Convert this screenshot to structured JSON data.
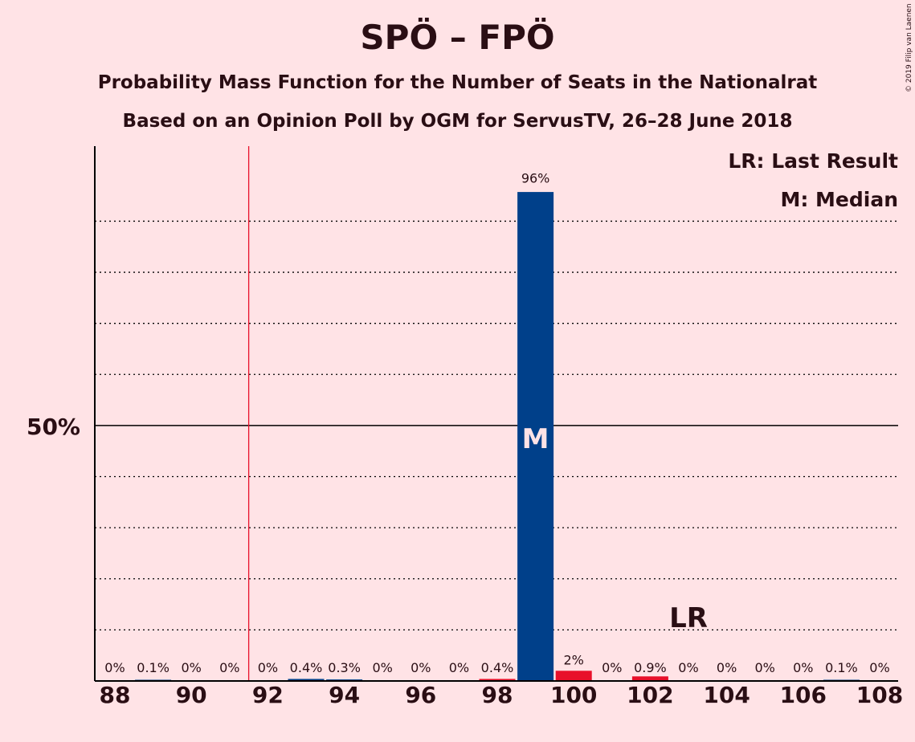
{
  "header": {
    "title": "SPÖ – FPÖ",
    "subtitle1": "Probability Mass Function for the Number of Seats in the Nationalrat",
    "subtitle2": "Based on an Opinion Poll by OGM for ServusTV, 26–28 June 2018",
    "copyright": "© 2019 Filip van Laenen"
  },
  "chart_data": {
    "type": "bar",
    "title": "SPÖ – FPÖ",
    "x": [
      88,
      89,
      90,
      91,
      92,
      93,
      94,
      95,
      96,
      97,
      98,
      99,
      100,
      101,
      102,
      103,
      104,
      105,
      106,
      107,
      108
    ],
    "values": [
      0,
      0.1,
      0,
      0,
      0,
      0.4,
      0.3,
      0,
      0,
      0,
      0.4,
      96,
      2,
      0,
      0.9,
      0,
      0,
      0,
      0,
      0.1,
      0
    ],
    "labels": [
      "0%",
      "0.1%",
      "0%",
      "0%",
      "0%",
      "0.4%",
      "0.3%",
      "0%",
      "0%",
      "0%",
      "0.4%",
      "96%",
      "2%",
      "0%",
      "0.9%",
      "0%",
      "0%",
      "0%",
      "0%",
      "0.1%",
      "0%"
    ],
    "xticks": [
      88,
      90,
      92,
      94,
      96,
      98,
      100,
      102,
      104,
      106,
      108
    ],
    "ytick_label": "50%",
    "ylim": [
      0,
      105
    ],
    "majority_line": 91.5,
    "median": 99,
    "last_result": 103,
    "colors": {
      "blue": "#00408A",
      "red": "#E8102A",
      "background": "#FFE3E6"
    },
    "blue_bars": [
      93,
      99
    ],
    "red_bars": [
      98,
      100,
      102
    ],
    "legend": {
      "lr": "LR: Last Result",
      "m": "M: Median"
    },
    "median_marker": "M",
    "lr_marker": "LR",
    "grid": true
  }
}
